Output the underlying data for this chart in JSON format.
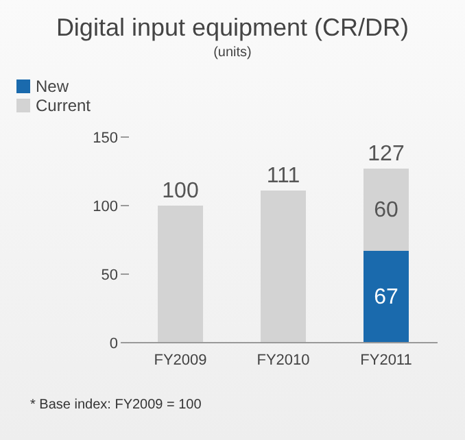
{
  "chart_data": {
    "type": "bar",
    "title": "Digital input equipment (CR/DR)",
    "subtitle": "(units)",
    "categories": [
      "FY2009",
      "FY2010",
      "FY2011"
    ],
    "stacked": true,
    "series": [
      {
        "name": "New",
        "color": "#1a6aad",
        "values": [
          null,
          null,
          67
        ],
        "value_labels": [
          null,
          null,
          "67"
        ]
      },
      {
        "name": "Current",
        "color": "#d3d3d3",
        "values": [
          100,
          111,
          60
        ],
        "value_labels": [
          null,
          null,
          "60"
        ]
      }
    ],
    "totals": [
      "100",
      "111",
      "127"
    ],
    "ylim": [
      0,
      150
    ],
    "yticks": [
      0,
      50,
      100,
      150
    ],
    "grid": false,
    "legend": "top left",
    "annotations": [
      "* Base index: FY2009 = 100"
    ]
  }
}
